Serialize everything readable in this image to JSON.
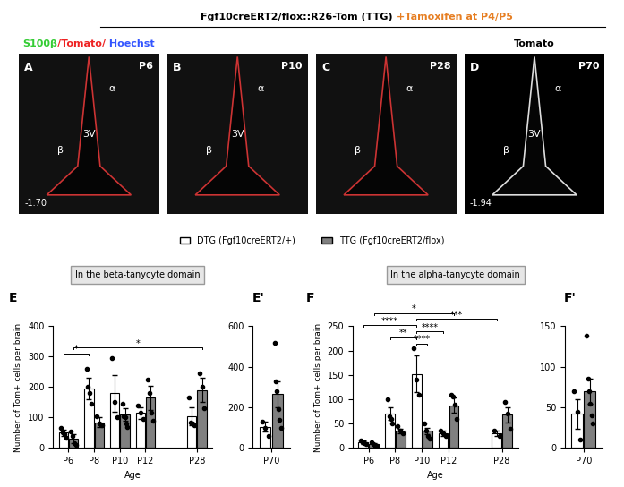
{
  "header": {
    "title": "Fgf10creERT2/flox::R26-Tom (TTG)",
    "treatment": "+Tamoxifen at P4/P5"
  },
  "channel_labels": [
    {
      "panel": "A",
      "parts": [
        {
          "text": "S100β",
          "color": "#33cc33"
        },
        {
          "text": "/Tomato/",
          "color": "#ee2222"
        },
        {
          "text": " Hoechst",
          "color": "#3355ff"
        }
      ]
    },
    {
      "panel": "D",
      "parts": [
        {
          "text": "Tomato",
          "color": "#000000"
        }
      ]
    }
  ],
  "images": [
    {
      "letter": "A",
      "age": "P6",
      "alpha": "α",
      "beta": "β",
      "ventricle": "3V",
      "bregma": "-1.70"
    },
    {
      "letter": "B",
      "age": "P10",
      "alpha": "α",
      "beta": "β",
      "ventricle": "3V"
    },
    {
      "letter": "C",
      "age": "P28",
      "alpha": "α",
      "beta": "β"
    },
    {
      "letter": "D",
      "age": "P70",
      "alpha": "α",
      "beta": "β",
      "ventricle": "3V",
      "bregma": "-1.94"
    }
  ],
  "sections": [
    "In the beta-tanycyte domain",
    "In the alpha-tanycyte domain"
  ],
  "chart_data": [
    {
      "type": "bar",
      "panel": "E",
      "xlabel": "Age",
      "ylabel": "Number of Tom+ cells per brain",
      "categories": [
        "P6",
        "P8",
        "P10",
        "P12",
        null,
        "P28"
      ],
      "ylim": [
        0,
        400
      ],
      "yticks": [
        0,
        100,
        200,
        300,
        400
      ],
      "series": [
        {
          "name": "DTG (Fgf10creERT2/+)",
          "color": "#ffffff",
          "values": [
            50,
            195,
            180,
            115,
            null,
            105
          ],
          "errors": [
            10,
            35,
            60,
            20,
            null,
            30
          ],
          "points": [
            [
              65,
              50,
              45,
              35
            ],
            [
              260,
              200,
              180,
              145
            ],
            [
              295,
              150,
              100
            ],
            [
              140,
              115,
              95
            ],
            null,
            [
              165,
              85,
              80,
              75
            ]
          ]
        },
        {
          "name": "TTG (Fgf10creERT2/flox)",
          "color": "#808080",
          "values": [
            30,
            85,
            110,
            165,
            null,
            190
          ],
          "errors": [
            15,
            15,
            20,
            40,
            null,
            40
          ],
          "points": [
            [
              55,
              40,
              15,
              10
            ],
            [
              105,
              80,
              75
            ],
            [
              145,
              105,
              100,
              80,
              70
            ],
            [
              225,
              180,
              115,
              90
            ],
            null,
            [
              245,
              200,
              130
            ]
          ]
        }
      ],
      "significance": [
        {
          "label": "*",
          "from": [
            "DTG (Fgf10creERT2/+)",
            "P6"
          ],
          "to": [
            "DTG (Fgf10creERT2/+)",
            "P8"
          ]
        },
        {
          "label": "*",
          "from": [
            "TTG (Fgf10creERT2/flox)",
            "P6"
          ],
          "to": [
            "TTG (Fgf10creERT2/flox)",
            "P28"
          ]
        }
      ]
    },
    {
      "type": "bar",
      "panel": "E'",
      "categories": [
        "P70"
      ],
      "ylim": [
        0,
        600
      ],
      "yticks": [
        0,
        200,
        400,
        600
      ],
      "series": [
        {
          "name": "DTG (Fgf10creERT2/+)",
          "color": "#ffffff",
          "values": [
            105
          ],
          "errors": [
            25
          ],
          "points": [
            [
              130,
              100,
              60
            ]
          ]
        },
        {
          "name": "TTG (Fgf10creERT2/flox)",
          "color": "#808080",
          "values": [
            265
          ],
          "errors": [
            65
          ],
          "points": [
            [
              520,
              330,
              280,
              190,
              140,
              100
            ]
          ]
        }
      ],
      "significance": []
    },
    {
      "type": "bar",
      "panel": "F",
      "xlabel": "Age",
      "ylabel": "Number of Tom+ cells per brain",
      "categories": [
        "P6",
        "P8",
        "P10",
        "P12",
        null,
        "P28"
      ],
      "ylim": [
        0,
        250
      ],
      "yticks": [
        0,
        50,
        100,
        150,
        200,
        250
      ],
      "series": [
        {
          "name": "DTG (Fgf10creERT2/+)",
          "color": "#ffffff",
          "values": [
            12,
            70,
            152,
            30,
            null,
            30
          ],
          "errors": [
            3,
            13,
            38,
            5,
            null,
            5
          ],
          "points": [
            [
              15,
              12,
              10,
              8
            ],
            [
              100,
              65,
              60,
              50
            ],
            [
              205,
              140,
              110
            ],
            [
              35,
              30,
              25
            ],
            null,
            [
              35,
              25
            ]
          ]
        },
        {
          "name": "TTG (Fgf10creERT2/flox)",
          "color": "#808080",
          "values": [
            8,
            35,
            35,
            88,
            null,
            68
          ],
          "errors": [
            2,
            5,
            7,
            15,
            null,
            15
          ],
          "points": [
            [
              12,
              8,
              5,
              5
            ],
            [
              45,
              35,
              30
            ],
            [
              50,
              35,
              25,
              20
            ],
            [
              110,
              105,
              90,
              60
            ],
            null,
            [
              95,
              70,
              40
            ]
          ]
        }
      ],
      "significance": [
        {
          "label": "****",
          "from": [
            "DTG (Fgf10creERT2/+)",
            "P10"
          ],
          "to": [
            "TTG (Fgf10creERT2/flox)",
            "P10"
          ]
        },
        {
          "label": "**",
          "from": [
            "DTG (Fgf10creERT2/+)",
            "P8"
          ],
          "to": [
            "DTG (Fgf10creERT2/+)",
            "P10"
          ]
        },
        {
          "label": "****",
          "from": [
            "DTG (Fgf10creERT2/+)",
            "P10"
          ],
          "to": [
            "DTG (Fgf10creERT2/+)",
            "P12"
          ]
        },
        {
          "label": "****",
          "from": [
            "DTG (Fgf10creERT2/+)",
            "P6"
          ],
          "to": [
            "DTG (Fgf10creERT2/+)",
            "P10"
          ]
        },
        {
          "label": "***",
          "from": [
            "DTG (Fgf10creERT2/+)",
            "P10"
          ],
          "to": [
            "DTG (Fgf10creERT2/+)",
            "P28"
          ]
        },
        {
          "label": "*",
          "from": [
            "TTG (Fgf10creERT2/flox)",
            "P6"
          ],
          "to": [
            "TTG (Fgf10creERT2/flox)",
            "P12"
          ]
        }
      ]
    },
    {
      "type": "bar",
      "panel": "F'",
      "categories": [
        "P70"
      ],
      "ylim": [
        0,
        150
      ],
      "yticks": [
        0,
        50,
        100,
        150
      ],
      "series": [
        {
          "name": "DTG (Fgf10creERT2/+)",
          "color": "#ffffff",
          "values": [
            42
          ],
          "errors": [
            18
          ],
          "points": [
            [
              70,
              45,
              10
            ]
          ]
        },
        {
          "name": "TTG (Fgf10creERT2/flox)",
          "color": "#808080",
          "values": [
            70
          ],
          "errors": [
            15
          ],
          "points": [
            [
              138,
              85,
              70,
              55,
              40,
              30
            ]
          ]
        }
      ],
      "significance": []
    }
  ]
}
